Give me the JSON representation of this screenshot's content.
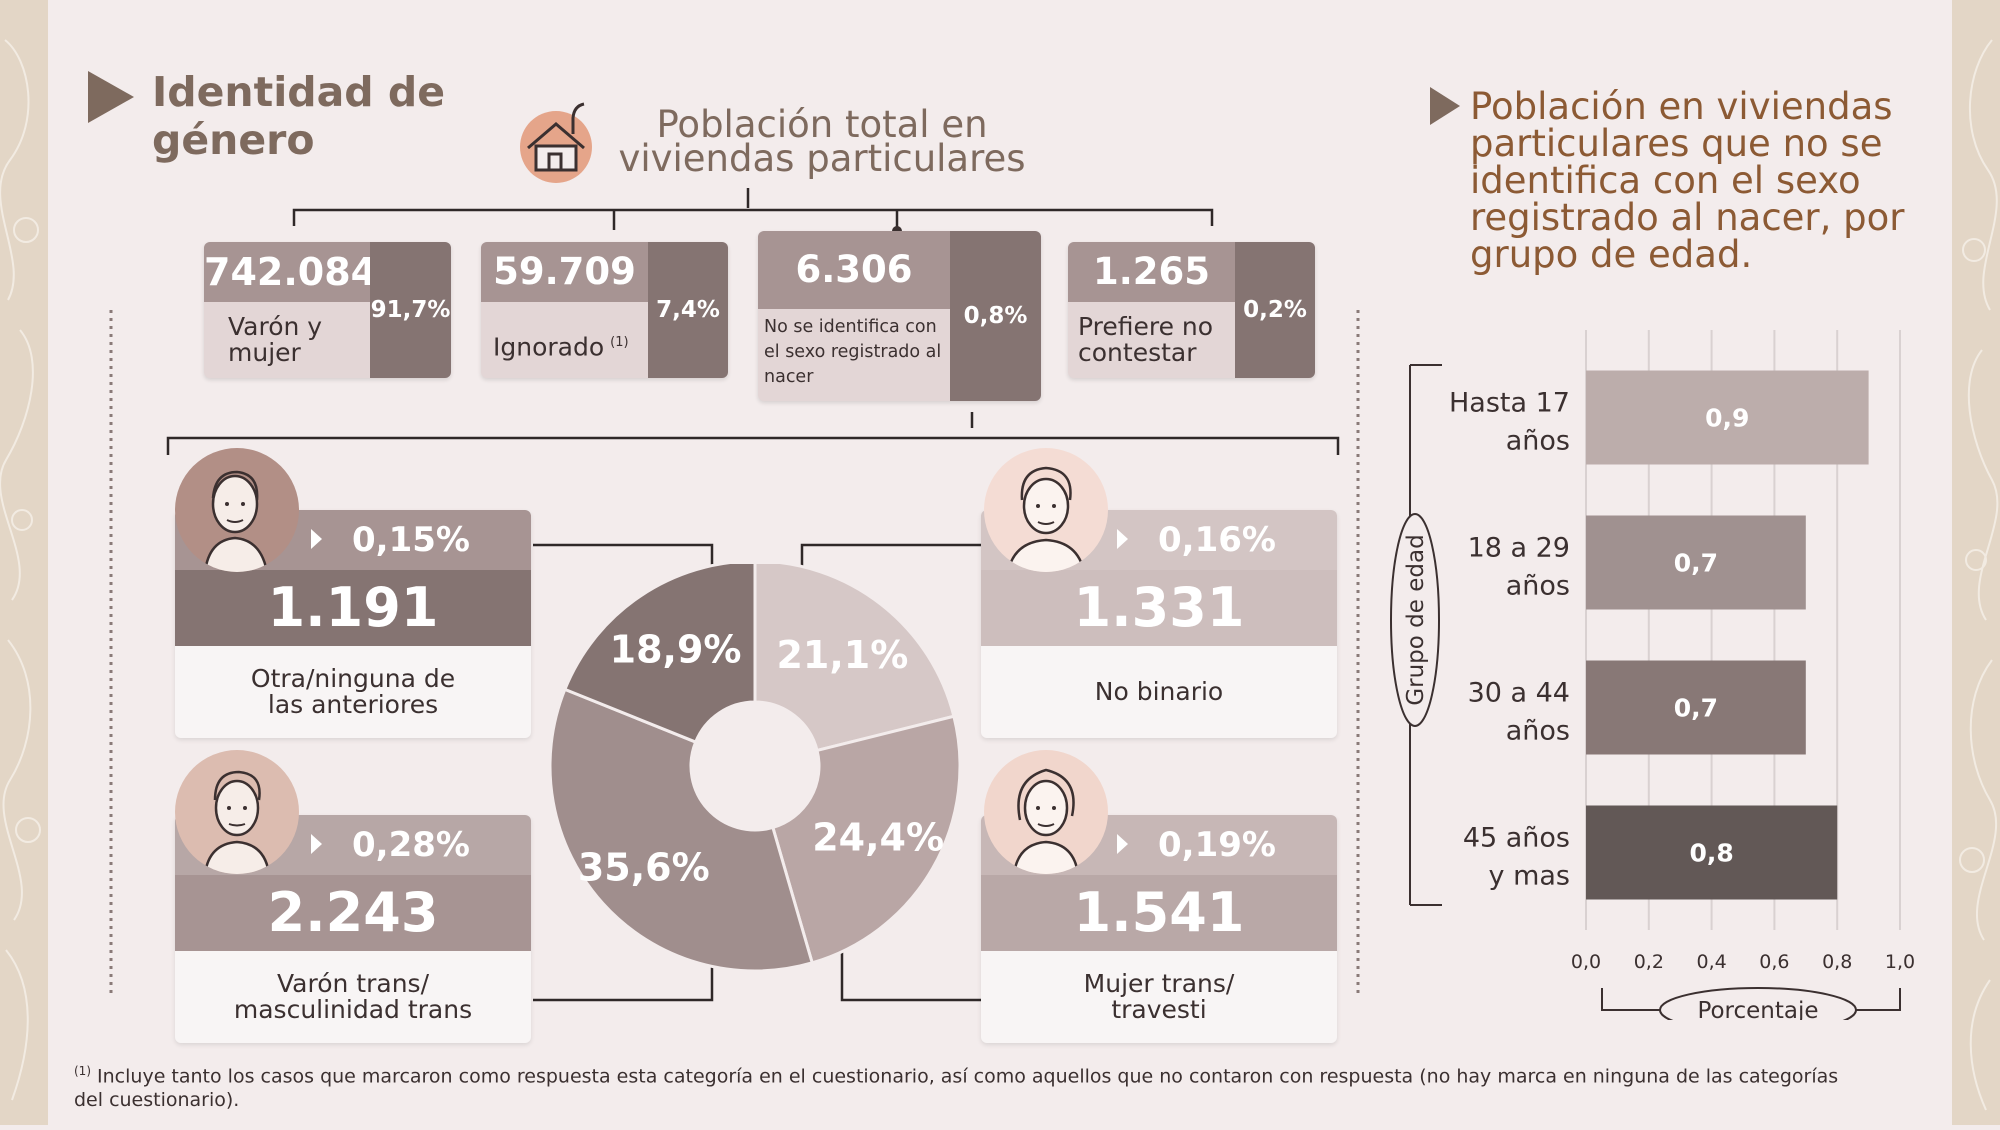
{
  "colors": {
    "accent": "#7e6a5e",
    "title_right": "#8c5a34",
    "bar_light": "#b7a7a6",
    "bar_mid": "#a79493",
    "bar_dark": "#857472"
  },
  "header": {
    "title_line1": "Identidad de",
    "title_line2": "género",
    "population_title_line1": "Población total en",
    "population_title_line2": "viviendas particulares"
  },
  "top_cards": [
    {
      "value": "742.084",
      "label": "Varón y\nmujer",
      "pct": "91,7%"
    },
    {
      "value": "59.709",
      "label": "Ignorado",
      "note": "(1)",
      "pct": "7,4%"
    },
    {
      "value": "6.306",
      "label": "No se identifica con\nel sexo registrado al\nnacer",
      "pct": "0,8%"
    },
    {
      "value": "1.265",
      "label": "Prefiere no\ncontestar",
      "pct": "0,2%"
    }
  ],
  "person_cards": [
    {
      "pct": "0,15%",
      "value": "1.191",
      "label": "Otra/ninguna de\nlas anteriores"
    },
    {
      "pct": "0,16%",
      "value": "1.331",
      "label": "No binario"
    },
    {
      "pct": "0,28%",
      "value": "2.243",
      "label": "Varón trans/\nmasculinidad trans"
    },
    {
      "pct": "0,19%",
      "value": "1.541",
      "label": "Mujer trans/\ntravesti"
    }
  ],
  "chart_data": [
    {
      "type": "pie",
      "slices": [
        {
          "label": "21,1%",
          "value": 21.1,
          "color": "#d6c8c7"
        },
        {
          "label": "24,4%",
          "value": 24.4,
          "color": "#b9a6a5"
        },
        {
          "label": "35,6%",
          "value": 35.6,
          "color": "#a08e8d"
        },
        {
          "label": "18,9%",
          "value": 18.9,
          "color": "#857472"
        }
      ]
    },
    {
      "type": "bar",
      "orientation": "horizontal",
      "title": "Población en viviendas particulares que no se identifica con el sexo registrado al nacer, por grupo de edad.",
      "categories": [
        "Hasta 17\naños",
        "18 a 29\naños",
        "30 a 44\naños",
        "45 años\ny mas"
      ],
      "values": [
        0.9,
        0.7,
        0.7,
        0.8
      ],
      "value_labels": [
        "0,9",
        "0,7",
        "0,7",
        "0,8"
      ],
      "bar_colors": [
        "#bcadab",
        "#a09190",
        "#887876",
        "#625856"
      ],
      "xlim": [
        0,
        1
      ],
      "xticks": [
        "0,0",
        "0,2",
        "0,4",
        "0,6",
        "0,8",
        "1,0"
      ],
      "xlabel": "Porcentaje",
      "ylabel": "Grupo de edad",
      "grid": true
    }
  ],
  "footnote": {
    "mark": "(1)",
    "text": " Incluye tanto los casos que marcaron como respuesta esta categoría en el cuestionario, así como aquellos que no contaron con respuesta (no hay marca en ninguna de las categorías del cuestionario)."
  }
}
